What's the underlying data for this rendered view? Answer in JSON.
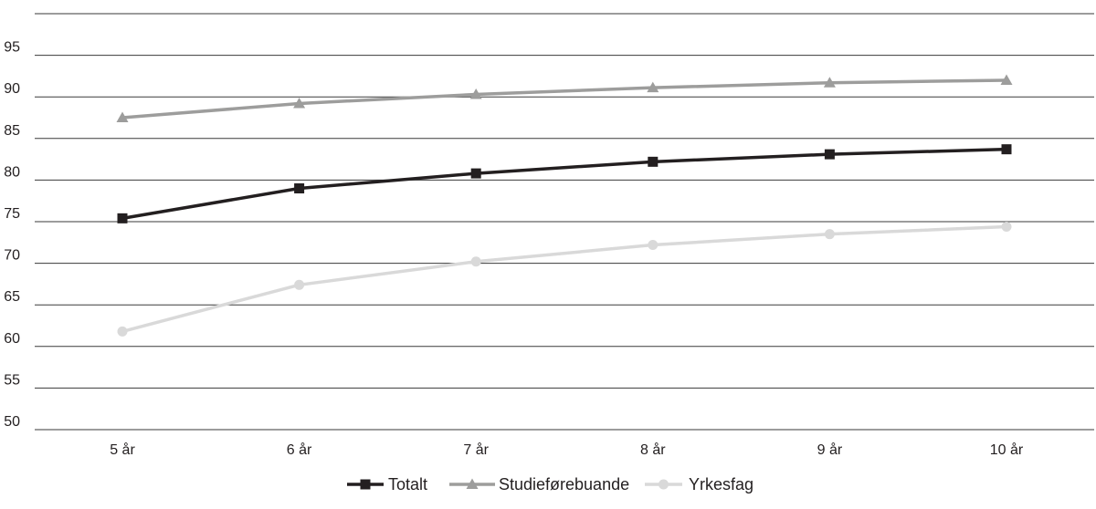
{
  "chart_data": {
    "type": "line",
    "categories": [
      "5 år",
      "6 år",
      "7 år",
      "8 år",
      "9 år",
      "10 år"
    ],
    "ylim": [
      50,
      100
    ],
    "yticks": [
      50,
      55,
      60,
      65,
      70,
      75,
      80,
      85,
      90,
      95
    ],
    "grid": true,
    "legend_position": "bottom",
    "series": [
      {
        "name": "Totalt",
        "values": [
          75.4,
          79.0,
          80.8,
          82.2,
          83.1,
          83.7
        ],
        "color": "#231f20",
        "marker": "square"
      },
      {
        "name": "Studieførebuande",
        "values": [
          87.5,
          89.2,
          90.3,
          91.1,
          91.7,
          92.0
        ],
        "color": "#9d9d9c",
        "marker": "triangle"
      },
      {
        "name": "Yrkesfag",
        "values": [
          61.8,
          67.4,
          70.2,
          72.2,
          73.5,
          74.4
        ],
        "color": "#d9d9d9",
        "marker": "circle"
      }
    ]
  }
}
